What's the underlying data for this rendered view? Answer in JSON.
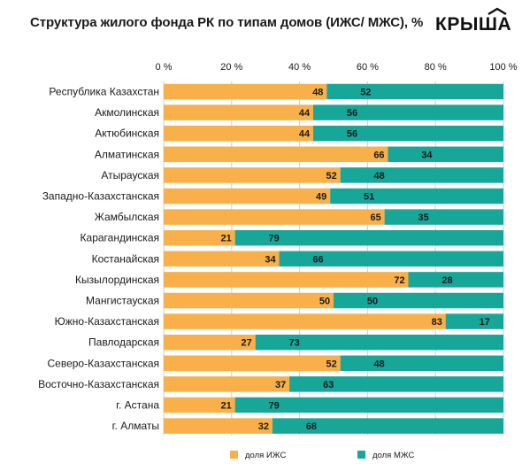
{
  "header": {
    "title": "Структура жилого фонда РК по типам домов (ИЖС/ МЖС), %",
    "logo_text": "КРЫША"
  },
  "colors": {
    "izhs": "#F9B04A",
    "mzhs": "#17A799",
    "grid": "#cfcfcf",
    "text": "#1a1a1a"
  },
  "chart_data": {
    "type": "bar",
    "orientation": "horizontal",
    "stacked": true,
    "title": "Структура жилого фонда РК по типам домов (ИЖС/ МЖС), %",
    "xlim": [
      0,
      100
    ],
    "x_ticks": [
      "0 %",
      "20 %",
      "40 %",
      "60 %",
      "80 %",
      "100 %"
    ],
    "x_axis_position": "top",
    "grid": true,
    "legend_position": "bottom",
    "categories": [
      "Республика Казахстан",
      "Акмолинская",
      "Актюбинская",
      "Алматинская",
      "Атырауская",
      "Западно-Казахстанская",
      "Жамбылская",
      "Карагандинская",
      "Костанайская",
      "Кызылординская",
      "Мангистауская",
      "Южно-Казахстанская",
      "Павлодарская",
      "Северо-Казахстанская",
      "Восточно-Казахстанская",
      "г. Астана",
      "г. Алматы"
    ],
    "series": [
      {
        "name": "доля ИЖС",
        "values": [
          48,
          44,
          44,
          66,
          52,
          49,
          65,
          21,
          34,
          72,
          50,
          83,
          27,
          52,
          37,
          21,
          32
        ]
      },
      {
        "name": "доля МЖС",
        "values": [
          52,
          56,
          56,
          34,
          48,
          51,
          35,
          79,
          66,
          28,
          50,
          17,
          73,
          48,
          63,
          79,
          68
        ]
      }
    ]
  }
}
